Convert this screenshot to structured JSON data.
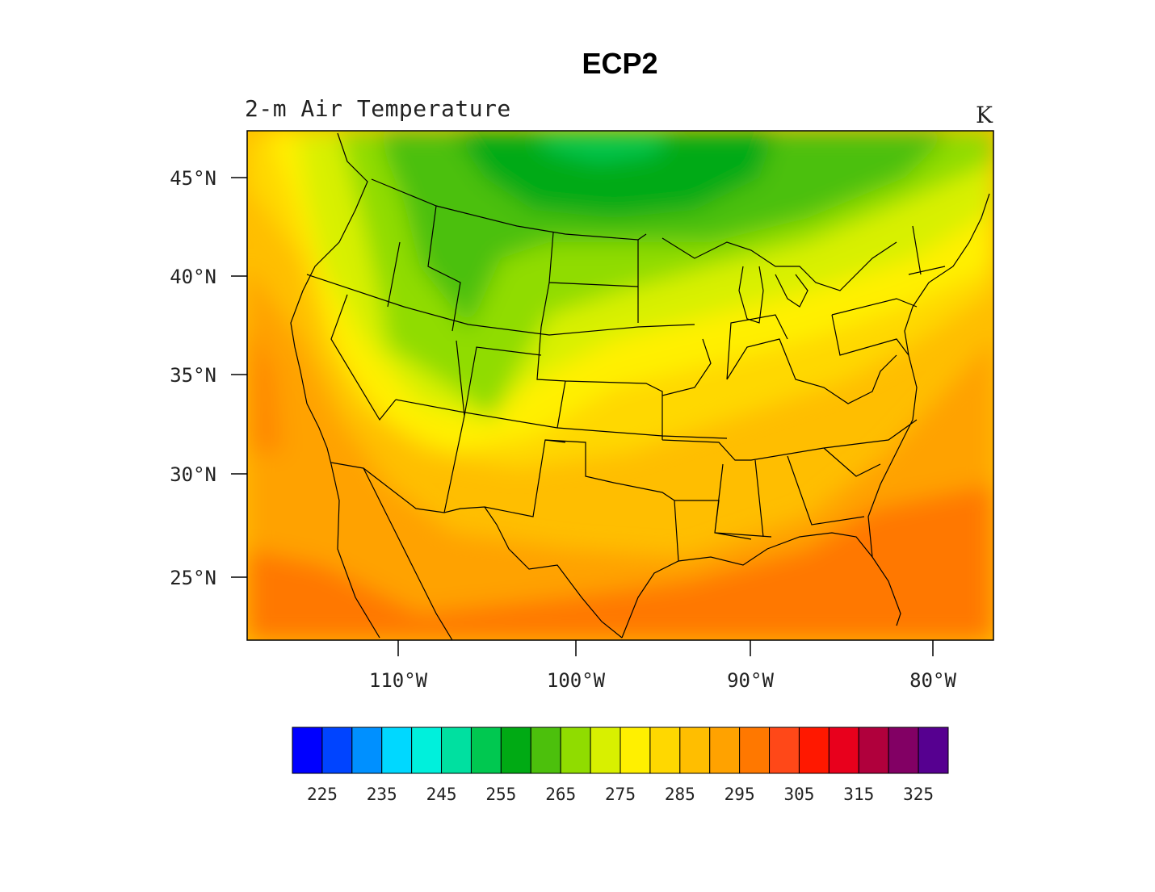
{
  "title": "ECP2",
  "subtitle": "2-m Air Temperature",
  "units": "K",
  "map": {
    "region": "Contiguous United States",
    "lat_range": [
      21.6,
      47.3
    ],
    "lon_range": [
      -118.4,
      -76.8
    ],
    "lat_ticks": [
      "45°N",
      "40°N",
      "35°N",
      "30°N",
      "25°N"
    ],
    "lon_ticks": [
      "110°W",
      "100°W",
      "90°W",
      "80°W"
    ]
  },
  "colorbar": {
    "labels": [
      "225",
      "235",
      "245",
      "255",
      "265",
      "275",
      "285",
      "295",
      "305",
      "315",
      "325"
    ],
    "colors": [
      "#0000ff",
      "#0044ff",
      "#0090ff",
      "#00d8ff",
      "#00f0dc",
      "#00e0a0",
      "#00c850",
      "#00aa14",
      "#4cc00c",
      "#90dc00",
      "#d8f000",
      "#fff000",
      "#ffd800",
      "#ffbe00",
      "#ffa200",
      "#ff7800",
      "#ff4818",
      "#ff1800",
      "#e8001c",
      "#b0003c",
      "#820064",
      "#560090"
    ]
  }
}
